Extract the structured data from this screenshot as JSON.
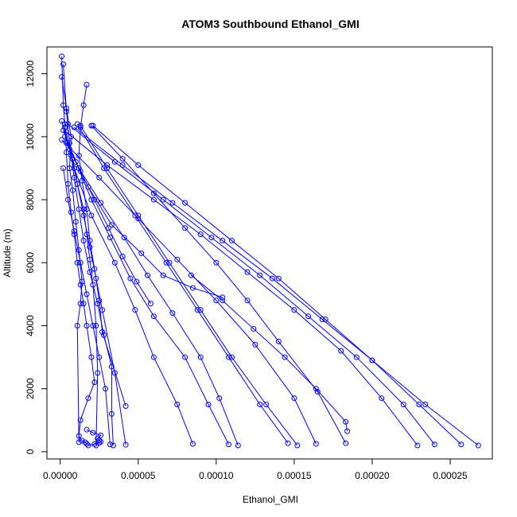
{
  "chart_data": {
    "type": "line",
    "title": "ATOM3 Southbound Ethanol_GMI",
    "xlabel": "Ethanol_GMI",
    "ylabel": "Altitude (m)",
    "xlim": [
      -8.5e-06,
      0.000277
    ],
    "ylim": [
      -230,
      12850
    ],
    "x_ticks": [
      0,
      5e-05,
      0.0001,
      0.00015,
      0.0002,
      0.00025
    ],
    "x_tick_labels": [
      "0.00000",
      "0.00005",
      "0.00010",
      "0.00015",
      "0.00020",
      "0.00025"
    ],
    "y_ticks": [
      0,
      2000,
      4000,
      6000,
      8000,
      10000,
      12000
    ],
    "y_tick_labels": [
      "0",
      "2000",
      "4000",
      "6000",
      "8000",
      "10000",
      "12000"
    ],
    "series_color": "#0000ff",
    "marker": "open-circle",
    "grid": false,
    "series": [
      {
        "x": [
          1e-06,
          2e-06,
          3e-06,
          4e-06,
          5e-06,
          7e-06,
          9e-06,
          1.1e-05,
          1.3e-05,
          1.5e-05,
          1.7e-05,
          2e-05,
          2.2e-05,
          1.8e-05,
          1.3e-05,
          1.2e-05,
          1.4e-05,
          1.6e-05,
          1.7e-05,
          1.8e-05,
          2.2e-05,
          2.5e-05,
          2.6e-05,
          2.5e-05,
          2.4e-05,
          2.6e-05,
          2.1e-05,
          1.7e-05
        ],
        "y": [
          12550,
          11000,
          10400,
          9500,
          8500,
          7600,
          6900,
          6000,
          5300,
          4700,
          4000,
          3000,
          2200,
          1700,
          1000,
          500,
          350,
          300,
          250,
          200,
          240,
          280,
          320,
          360,
          420,
          520,
          600,
          700
        ]
      },
      {
        "x": [
          2e-06,
          4e-06,
          6e-06,
          9e-06,
          1.2e-05,
          1.5e-05,
          1.9e-05,
          2.4e-05,
          2.8e-05,
          3.3e-05,
          3.3e-05,
          3.4e-05
        ],
        "y": [
          12300,
          10800,
          9800,
          8700,
          7700,
          6700,
          5700,
          4700,
          3700,
          2700,
          1200,
          200
        ]
      },
      {
        "x": [
          1.7e-05,
          1.5e-05,
          1.3e-05,
          1.2e-05,
          1.4e-05,
          1.7e-05,
          1.9e-05,
          2.2e-05,
          2.5e-05,
          2.7e-05,
          4.2e-05
        ],
        "y": [
          11650,
          11000,
          10300,
          9400,
          8600,
          7700,
          6700,
          5800,
          4800,
          3800,
          1450
        ]
      },
      {
        "x": [
          1e-06,
          9e-06,
          2e-05,
          3.5e-05,
          4.8e-05,
          6e-05,
          7.5e-05,
          8.5e-05
        ],
        "y": [
          10500,
          9000,
          7500,
          6000,
          4500,
          3000,
          1500,
          250
        ]
      },
      {
        "x": [
          2e-06,
          1e-05,
          2e-05,
          3.2e-05,
          4.5e-05,
          6e-05,
          8e-05,
          9.5e-05,
          0.000108
        ],
        "y": [
          10200,
          9200,
          8000,
          6800,
          5500,
          4300,
          3000,
          1500,
          230
        ]
      },
      {
        "x": [
          3e-06,
          1.2e-05,
          2.6e-05,
          4.1e-05,
          5.6e-05,
          7.2e-05,
          9e-05,
          0.000102,
          0.000114
        ],
        "y": [
          10000,
          9000,
          7900,
          6800,
          5600,
          4400,
          3000,
          1700,
          200
        ]
      },
      {
        "x": [
          1.1e-05,
          2.8e-05,
          4.8e-05,
          6.8e-05,
          8.8e-05,
          0.000108,
          0.000128,
          0.000146
        ],
        "y": [
          10400,
          9000,
          7500,
          6000,
          4500,
          3000,
          1500,
          270
        ]
      },
      {
        "x": [
          1.3e-05,
          3e-05,
          5e-05,
          7e-05,
          9e-05,
          0.00011,
          0.000132,
          0.000152
        ],
        "y": [
          10350,
          9000,
          7500,
          6000,
          4500,
          3000,
          1500,
          200
        ]
      },
      {
        "x": [
          1e-06,
          2.5e-05,
          5e-05,
          7.5e-05,
          0.0001,
          0.000125,
          0.00015,
          0.000164
        ],
        "y": [
          9900,
          8700,
          7400,
          6100,
          4800,
          3400,
          1700,
          250
        ]
      },
      {
        "x": [
          2e-05,
          4e-05,
          6e-05,
          8e-05,
          0.0001,
          0.00012,
          0.00014,
          0.000165,
          0.000183
        ],
        "y": [
          10350,
          9300,
          8200,
          7100,
          6000,
          4800,
          3500,
          1900,
          270
        ]
      },
      {
        "x": [
          8.4e-05,
          0.000104,
          0.000124,
          0.000144,
          0.000164,
          0.000183,
          0.000184
        ],
        "y": [
          5600,
          4800,
          3900,
          3000,
          2000,
          950,
          650
        ]
      },
      {
        "x": [
          4e-06,
          3e-05,
          6e-05,
          9e-05,
          0.00012,
          0.00015,
          0.00018,
          0.000206,
          0.000229
        ],
        "y": [
          10150,
          9100,
          8000,
          6900,
          5700,
          4500,
          3200,
          1700,
          200
        ]
      },
      {
        "x": [
          5e-06,
          3.5e-05,
          6.6e-05,
          9.7e-05,
          0.000128,
          0.000159,
          0.00019,
          0.00022,
          0.00024
        ],
        "y": [
          10400,
          9200,
          8000,
          6800,
          5600,
          4300,
          3000,
          1500,
          230
        ]
      },
      {
        "x": [
          2.1e-05,
          5e-05,
          8e-05,
          0.00011,
          0.00014,
          0.00017,
          0.0002,
          0.00023,
          0.000257
        ],
        "y": [
          10350,
          9100,
          7900,
          6700,
          5500,
          4200,
          2900,
          1500,
          230
        ]
      },
      {
        "x": [
          9e-06,
          4e-05,
          7.2e-05,
          0.000104,
          0.000136,
          0.000168,
          0.0002,
          0.000234,
          0.000268
        ],
        "y": [
          10300,
          9100,
          7900,
          6700,
          5500,
          4200,
          2900,
          1500,
          200
        ]
      },
      {
        "x": [
          6e-06,
          1.8e-05,
          3.3e-05,
          5.2e-05,
          6.6e-05,
          8.5e-05,
          0.000104
        ],
        "y": [
          9600,
          8400,
          7200,
          6300,
          5600,
          5200,
          4900
        ]
      },
      {
        "x": [
          1e-06,
          4e-06,
          7e-06,
          6e-06,
          8e-06,
          1e-05,
          1.2e-05,
          1.4e-05,
          1.3e-05,
          1.1e-05,
          1.2e-05
        ],
        "y": [
          11900,
          10900,
          10000,
          9000,
          8300,
          7300,
          6400,
          5400,
          4700,
          4000,
          300
        ]
      },
      {
        "x": [
          8e-06,
          1.1e-05,
          1.5e-05,
          1.7e-05,
          1.9e-05,
          2.1e-05,
          2.3e-05,
          2.4e-05,
          2.3e-05
        ],
        "y": [
          9300,
          8500,
          7700,
          6900,
          6100,
          5300,
          4000,
          2500,
          200
        ]
      },
      {
        "x": [
          2e-06,
          5e-06,
          9e-06,
          1.3e-05,
          1.7e-05,
          2.1e-05,
          2.5e-05,
          2.9e-05,
          3.2e-05
        ],
        "y": [
          9000,
          8000,
          7000,
          6000,
          5000,
          4000,
          3000,
          2000,
          230
        ]
      },
      {
        "x": [
          4e-06,
          1.3e-05,
          2.2e-05,
          3.1e-05,
          4e-05,
          4.9e-05,
          5.8e-05
        ],
        "y": [
          9800,
          8900,
          8000,
          7100,
          6200,
          5400,
          4700
        ]
      },
      {
        "x": [
          3e-06,
          7e-06,
          1.1e-05,
          1.5e-05,
          1.9e-05,
          2.3e-05,
          2.7e-05,
          3.5e-05,
          4.2e-05
        ],
        "y": [
          10300,
          9400,
          8500,
          7500,
          6500,
          5500,
          4500,
          2500,
          220
        ]
      }
    ]
  }
}
